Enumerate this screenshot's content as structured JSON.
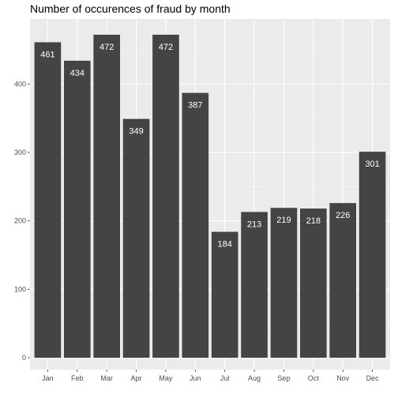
{
  "chart_data": {
    "type": "bar",
    "title": "Number of occurences of fraud by month",
    "xlabel": "",
    "ylabel": "",
    "categories": [
      "Jan",
      "Feb",
      "Mar",
      "Apr",
      "May",
      "Jun",
      "Jul",
      "Aug",
      "Sep",
      "Oct",
      "Nov",
      "Dec"
    ],
    "values": [
      461,
      434,
      472,
      349,
      472,
      387,
      184,
      213,
      219,
      218,
      226,
      301
    ],
    "data_labels": [
      "461",
      "434",
      "472",
      "349",
      "472",
      "387",
      "184",
      "213",
      "219",
      "218",
      "226",
      "301"
    ],
    "y_ticks": [
      0,
      100,
      200,
      300,
      400
    ],
    "y_tick_labels": [
      "0",
      "100",
      "200",
      "300",
      "400"
    ],
    "ylim": [
      0,
      500
    ],
    "grid": true,
    "legend": "none"
  },
  "colors": {
    "panel_background": "#ebebeb",
    "grid_major": "#ffffff",
    "grid_minor": "#f5f5f5",
    "bar_fill": "#444444",
    "data_label_text": "#ffffff",
    "tick_mark": "#333333"
  }
}
